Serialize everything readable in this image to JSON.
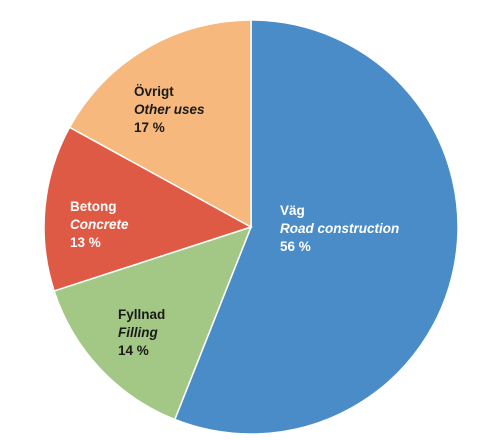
{
  "chart_data": {
    "type": "pie",
    "start_angle_deg": 0,
    "direction": "clockwise",
    "slices": [
      {
        "label_sv": "Väg",
        "label_en": "Road construction",
        "value": 56,
        "value_label": "56 %",
        "color": "#4a8cc8",
        "text_color": "light"
      },
      {
        "label_sv": "Fyllnad",
        "label_en": "Filling",
        "value": 14,
        "value_label": "14 %",
        "color": "#a3c784",
        "text_color": "dark"
      },
      {
        "label_sv": "Betong",
        "label_en": "Concrete",
        "value": 13,
        "value_label": "13 %",
        "color": "#de5a45",
        "text_color": "light"
      },
      {
        "label_sv": "Övrigt",
        "label_en": "Other uses",
        "value": 17,
        "value_label": "17 %",
        "color": "#f6b87c",
        "text_color": "dark"
      }
    ]
  }
}
